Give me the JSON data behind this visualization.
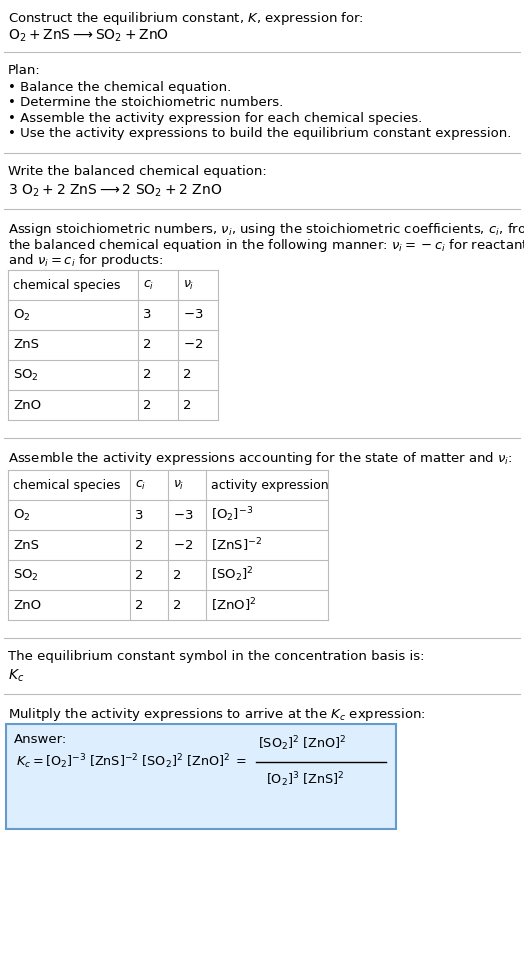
{
  "title_line1": "Construct the equilibrium constant, $K$, expression for:",
  "title_line2": "$\\mathrm{O_2 + ZnS \\longrightarrow SO_2 + ZnO}$",
  "plan_header": "Plan:",
  "plan_items": [
    "• Balance the chemical equation.",
    "• Determine the stoichiometric numbers.",
    "• Assemble the activity expression for each chemical species.",
    "• Use the activity expressions to build the equilibrium constant expression."
  ],
  "balanced_header": "Write the balanced chemical equation:",
  "balanced_eq": "$\\mathrm{3\\ O_2 + 2\\ ZnS \\longrightarrow 2\\ SO_2 + 2\\ ZnO}$",
  "stoich_line1": "Assign stoichiometric numbers, $\\nu_i$, using the stoichiometric coefficients, $c_i$, from",
  "stoich_line2": "the balanced chemical equation in the following manner: $\\nu_i = -c_i$ for reactants",
  "stoich_line3": "and $\\nu_i = c_i$ for products:",
  "table1_headers": [
    "chemical species",
    "$c_i$",
    "$\\nu_i$"
  ],
  "table1_rows": [
    [
      "$\\mathrm{O_2}$",
      "3",
      "$-3$"
    ],
    [
      "ZnS",
      "2",
      "$-2$"
    ],
    [
      "$\\mathrm{SO_2}$",
      "2",
      "2"
    ],
    [
      "ZnO",
      "2",
      "2"
    ]
  ],
  "assemble_header": "Assemble the activity expressions accounting for the state of matter and $\\nu_i$:",
  "table2_headers": [
    "chemical species",
    "$c_i$",
    "$\\nu_i$",
    "activity expression"
  ],
  "table2_rows": [
    [
      "$\\mathrm{O_2}$",
      "3",
      "$-3$",
      "$[\\mathrm{O_2}]^{-3}$"
    ],
    [
      "ZnS",
      "2",
      "$-2$",
      "$[\\mathrm{ZnS}]^{-2}$"
    ],
    [
      "$\\mathrm{SO_2}$",
      "2",
      "2",
      "$[\\mathrm{SO_2}]^{2}$"
    ],
    [
      "ZnO",
      "2",
      "2",
      "$[\\mathrm{ZnO}]^{2}$"
    ]
  ],
  "kc_symbol_text": "The equilibrium constant symbol in the concentration basis is:",
  "kc_symbol": "$K_c$",
  "multiply_text": "Mulitply the activity expressions to arrive at the $K_c$ expression:",
  "answer_label": "Answer:",
  "bg_color": "#ffffff",
  "answer_bg": "#ddeeff",
  "answer_border": "#6699cc",
  "text_color": "#000000",
  "table_line_color": "#bbbbbb",
  "sep_color": "#bbbbbb",
  "font_size": 9.5,
  "small_font": 9.0
}
